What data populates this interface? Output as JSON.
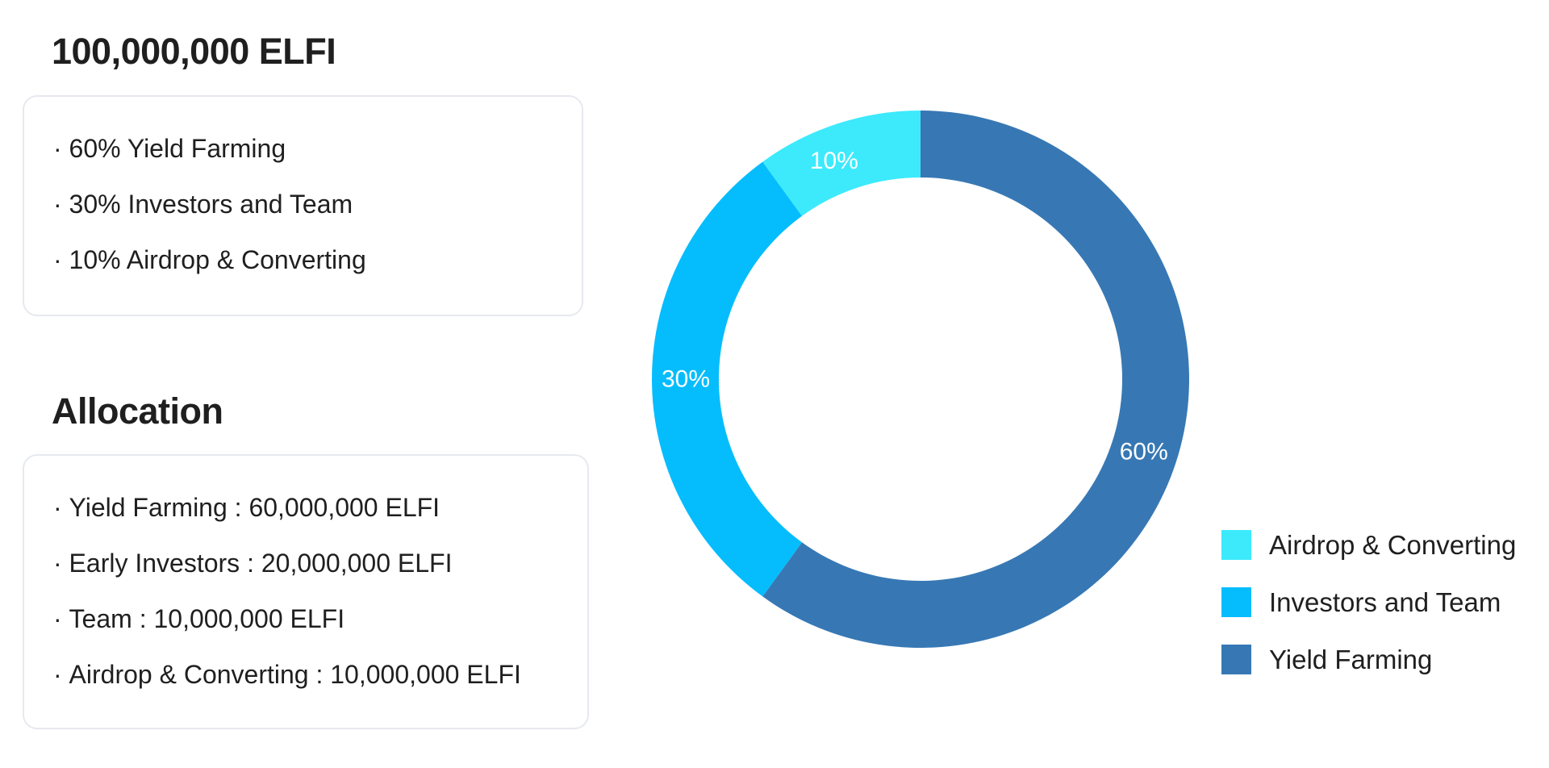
{
  "supply": {
    "title": "100,000,000 ELFI",
    "items": [
      "60% Yield Farming",
      "30% Investors and Team",
      "10% Airdrop & Converting"
    ]
  },
  "allocation": {
    "title": "Allocation",
    "items": [
      "Yield Farming : 60,000,000 ELFI",
      "Early Investors : 20,000,000 ELFI",
      "Team : 10,000,000 ELFI",
      "Airdrop & Converting : 10,000,000 ELFI"
    ]
  },
  "chart_data": {
    "type": "pie",
    "variant": "donut",
    "title": "",
    "legend_position": "bottom-right",
    "slices": [
      {
        "name": "Yield Farming",
        "value": 60,
        "label": "60%",
        "color": "#3778b4"
      },
      {
        "name": "Investors and Team",
        "value": 30,
        "label": "30%",
        "color": "#05bdfd"
      },
      {
        "name": "Airdrop & Converting",
        "value": 10,
        "label": "10%",
        "color": "#3ceafc"
      }
    ],
    "legend": [
      {
        "name": "Airdrop & Converting",
        "color": "#3ceafc"
      },
      {
        "name": "Investors and Team",
        "color": "#05bdfd"
      },
      {
        "name": "Yield Farming",
        "color": "#3778b4"
      }
    ]
  }
}
